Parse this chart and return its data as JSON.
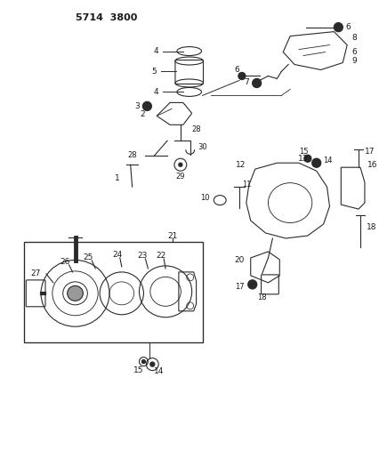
{
  "title": "5714  3800",
  "background_color": "#ffffff",
  "line_color": "#2a2a2a",
  "text_color": "#1a1a1a",
  "fig_width": 4.27,
  "fig_height": 5.33,
  "dpi": 100
}
